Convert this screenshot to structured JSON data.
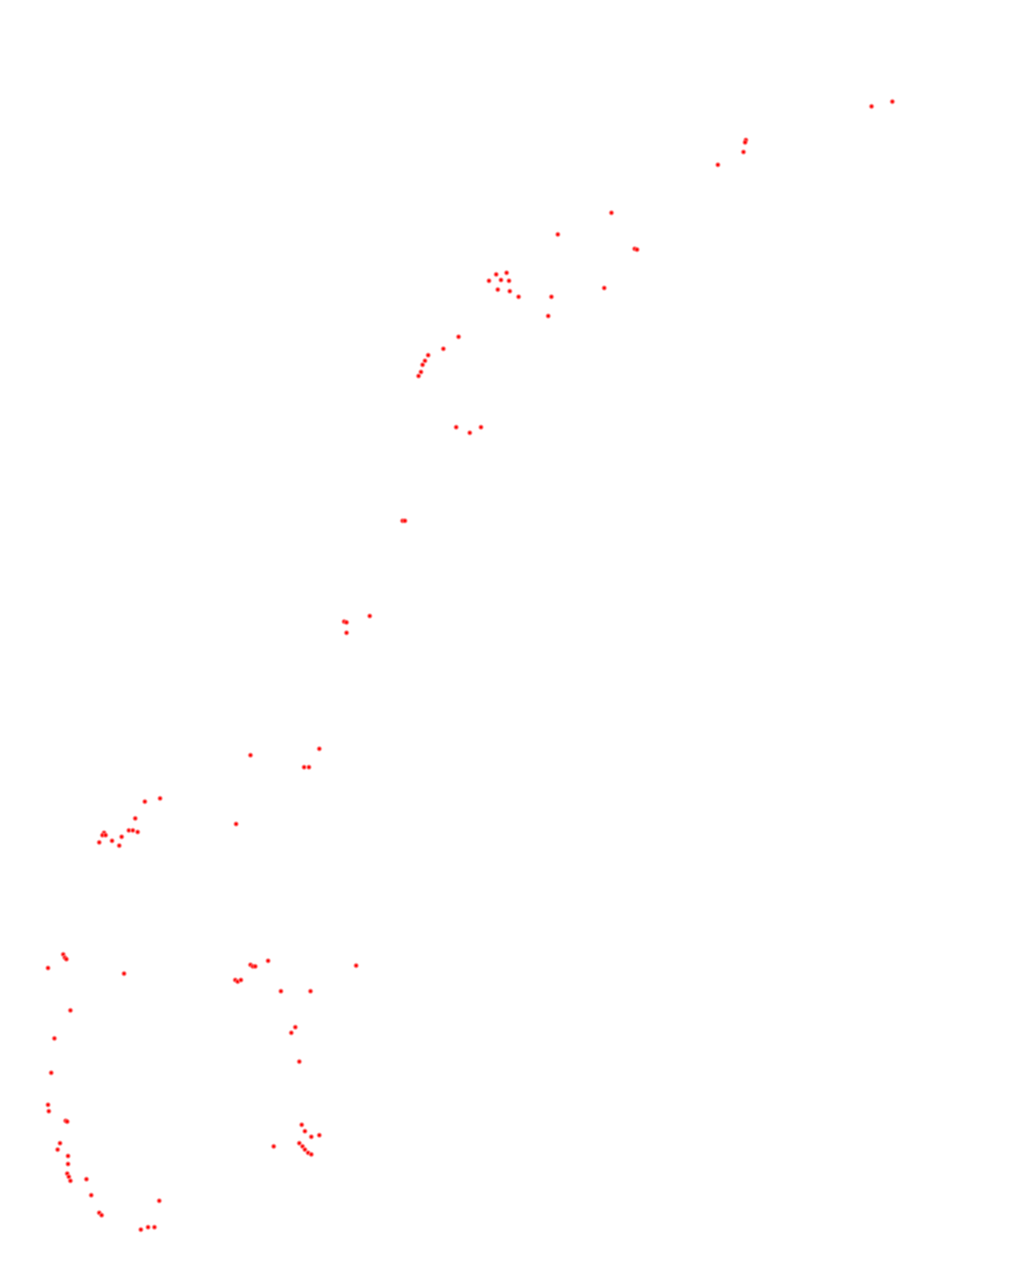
{
  "chart_data": {
    "type": "scatter",
    "title": "",
    "xlabel": "",
    "ylabel": "",
    "grid": false,
    "legend": "none",
    "marker_color": "#ff0000",
    "series": [
      {
        "points": [
          [
            1115,
            127
          ],
          [
            1089,
            133
          ],
          [
            932,
            175
          ],
          [
            931,
            178
          ],
          [
            929,
            190
          ],
          [
            897,
            206
          ],
          [
            764,
            266
          ],
          [
            697,
            293
          ],
          [
            793,
            311
          ],
          [
            796,
            312
          ],
          [
            620,
            343
          ],
          [
            633,
            341
          ],
          [
            611,
            351
          ],
          [
            626,
            350
          ],
          [
            636,
            351
          ],
          [
            622,
            362
          ],
          [
            637,
            364
          ],
          [
            648,
            371
          ],
          [
            689,
            371
          ],
          [
            755,
            360
          ],
          [
            685,
            395
          ],
          [
            573,
            421
          ],
          [
            554,
            436
          ],
          [
            535,
            444
          ],
          [
            531,
            451
          ],
          [
            528,
            456
          ],
          [
            526,
            465
          ],
          [
            523,
            470
          ],
          [
            570,
            534
          ],
          [
            587,
            541
          ],
          [
            601,
            534
          ],
          [
            503,
            651
          ],
          [
            506,
            651
          ],
          [
            430,
            777
          ],
          [
            433,
            778
          ],
          [
            462,
            770
          ],
          [
            433,
            791
          ],
          [
            313,
            944
          ],
          [
            399,
            936
          ],
          [
            380,
            959
          ],
          [
            386,
            959
          ],
          [
            181,
            1002
          ],
          [
            200,
            998
          ],
          [
            295,
            1030
          ],
          [
            169,
            1023
          ],
          [
            130,
            1041
          ],
          [
            128,
            1044
          ],
          [
            132,
            1044
          ],
          [
            161,
            1038
          ],
          [
            166,
            1038
          ],
          [
            172,
            1040
          ],
          [
            152,
            1046
          ],
          [
            140,
            1051
          ],
          [
            124,
            1053
          ],
          [
            149,
            1057
          ],
          [
            79,
            1193
          ],
          [
            81,
            1197
          ],
          [
            83,
            1199
          ],
          [
            60,
            1210
          ],
          [
            155,
            1217
          ],
          [
            313,
            1206
          ],
          [
            316,
            1208
          ],
          [
            319,
            1208
          ],
          [
            335,
            1201
          ],
          [
            445,
            1207
          ],
          [
            294,
            1225
          ],
          [
            297,
            1227
          ],
          [
            301,
            1225
          ],
          [
            351,
            1239
          ],
          [
            388,
            1239
          ],
          [
            88,
            1263
          ],
          [
            68,
            1298
          ],
          [
            369,
            1284
          ],
          [
            364,
            1291
          ],
          [
            374,
            1327
          ],
          [
            64,
            1341
          ],
          [
            60,
            1381
          ],
          [
            61,
            1389
          ],
          [
            82,
            1401
          ],
          [
            84,
            1402
          ],
          [
            377,
            1406
          ],
          [
            381,
            1414
          ],
          [
            389,
            1421
          ],
          [
            399,
            1419
          ],
          [
            75,
            1429
          ],
          [
            72,
            1437
          ],
          [
            342,
            1433
          ],
          [
            374,
            1429
          ],
          [
            378,
            1433
          ],
          [
            381,
            1437
          ],
          [
            385,
            1441
          ],
          [
            389,
            1443
          ],
          [
            85,
            1445
          ],
          [
            85,
            1455
          ],
          [
            84,
            1467
          ],
          [
            86,
            1471
          ],
          [
            88,
            1476
          ],
          [
            108,
            1474
          ],
          [
            114,
            1494
          ],
          [
            199,
            1501
          ],
          [
            124,
            1516
          ],
          [
            127,
            1519
          ],
          [
            176,
            1537
          ],
          [
            185,
            1534
          ],
          [
            193,
            1534
          ]
        ]
      }
    ]
  }
}
